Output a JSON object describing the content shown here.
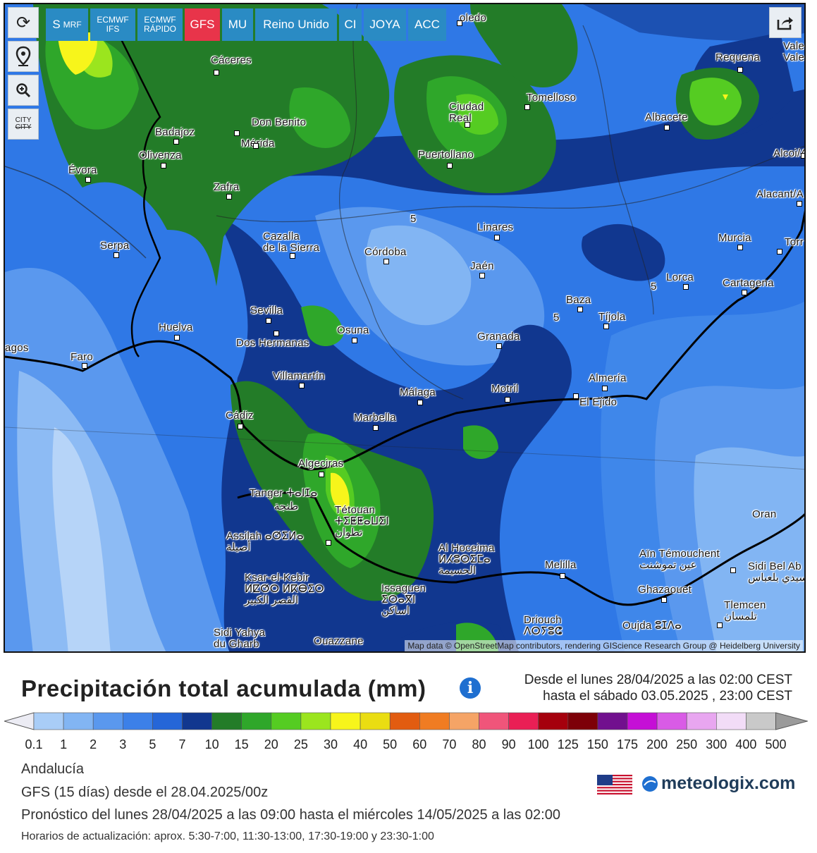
{
  "toolbar": {
    "models": [
      {
        "label": "S",
        "sub": "MRF",
        "active": false
      },
      {
        "label": "ECMWF",
        "sub": "IFS",
        "active": false
      },
      {
        "label": "ECMWF",
        "sub": "RÁPIDO",
        "active": false
      },
      {
        "label": "GFS",
        "sub": "",
        "active": true
      },
      {
        "label": "MU",
        "sub": "",
        "active": false
      },
      {
        "label": "Reino Unido",
        "sub": "",
        "active": false
      },
      {
        "label": "CI",
        "sub": "",
        "active": false
      },
      {
        "label": "JOYA",
        "sub": "",
        "active": false
      },
      {
        "label": "ACC",
        "sub": "",
        "active": false
      }
    ],
    "side": {
      "refresh_icon": "refresh-icon",
      "location_icon": "location-pin-icon",
      "zoom_icon": "zoom-icon",
      "city_label_top": "CITY",
      "city_label_bottom": "CITY"
    },
    "share_icon": "share-icon"
  },
  "map": {
    "cities": [
      {
        "name": "oledo"
      },
      {
        "name": "Cáceres"
      },
      {
        "name": "Badajoz"
      },
      {
        "name": "Don Benito"
      },
      {
        "name": "Mérida"
      },
      {
        "name": "Olivenza"
      },
      {
        "name": "Évora"
      },
      {
        "name": "Zafra"
      },
      {
        "name": "Ciudad\nReal"
      },
      {
        "name": "Tomelloso"
      },
      {
        "name": "Puertollano"
      },
      {
        "name": "Requena"
      },
      {
        "name": "Vale\nVale"
      },
      {
        "name": "Albacete"
      },
      {
        "name": "Alcoi/A"
      },
      {
        "name": "Alacant/A"
      },
      {
        "name": "Linares"
      },
      {
        "name": "Cazalla\nde la Sierra"
      },
      {
        "name": "Córdoba"
      },
      {
        "name": "Serpa"
      },
      {
        "name": "Murcia"
      },
      {
        "name": "Torr"
      },
      {
        "name": "Jaén"
      },
      {
        "name": "Lorca"
      },
      {
        "name": "Cartagena"
      },
      {
        "name": "Baza"
      },
      {
        "name": "Tíjola"
      },
      {
        "name": "Sevilla"
      },
      {
        "name": "Huelva"
      },
      {
        "name": "Osuna"
      },
      {
        "name": "Dos Hermanas"
      },
      {
        "name": "Granada"
      },
      {
        "name": "agos"
      },
      {
        "name": "Faro"
      },
      {
        "name": "Villamartín"
      },
      {
        "name": "Almería"
      },
      {
        "name": "Málaga"
      },
      {
        "name": "Motril"
      },
      {
        "name": "El Ejido"
      },
      {
        "name": "Cádiz"
      },
      {
        "name": "Marbella"
      },
      {
        "name": "Algeciras"
      },
      {
        "name": "Tanger ⵜⴰⵏⵊⴰ"
      },
      {
        "name": "طنجة"
      },
      {
        "name": "Tétouan\nⵜⵉⵟⵟⴰⵡⵉⵏ\nتطوان"
      },
      {
        "name": "Oran"
      },
      {
        "name": "Assilah ⴰⵚⵉⵍⴰ\nأصيلة"
      },
      {
        "name": "Al Hoceima\nⵍⵃⵓⵙⵉⵎⴰ\nالحسيمة"
      },
      {
        "name": "Melilla"
      },
      {
        "name": "Aïn Témouchent\nعين تموشنت"
      },
      {
        "name": "Sidi Bel Ab\nسيدي بلعباس"
      },
      {
        "name": "Ksar-el-Kebir\nⵍⵇⵚⵔ ⵍⴽⴱⵉⵔ\nالقصر الكبير"
      },
      {
        "name": "Issaguen\nⵉⵙⴰⴳⵏ\nاساكن"
      },
      {
        "name": "Ghazaouet"
      },
      {
        "name": "Tlemcen\nتلمسان"
      },
      {
        "name": "Driouch\nⴷⵔⵢⵓⵛ"
      },
      {
        "name": "Oujda ⵓⵊⴷⴰ"
      },
      {
        "name": "Sidi Yahya\ndu Gharb"
      },
      {
        "name": "Ouazzane"
      }
    ],
    "contour_labels": [
      "5",
      "5",
      "5"
    ],
    "attribution": "Map data © OpenStreetMap contributors, rendering GIScience Research Group @ Heidelberg University"
  },
  "legend": {
    "title": "Precipitación total acumulada (mm)",
    "info_icon": "info-icon",
    "range_line1": "Desde el lunes 28/04/2025 a  las 02:00  CEST",
    "range_line2": "hasta el sábado 03.05.2025 ,  23:00  CEST",
    "colors": [
      "#d8dcf0",
      "#a9cdf7",
      "#82b5f3",
      "#5a98ee",
      "#3c80e8",
      "#2566d8",
      "#11378f",
      "#237c28",
      "#2fa72a",
      "#55cc22",
      "#9be51e",
      "#f7f51b",
      "#eadd12",
      "#e25c10",
      "#f07c22",
      "#f5a466",
      "#f0557a",
      "#ea1f55",
      "#a5000d",
      "#7d0008",
      "#71108e",
      "#c50fd6",
      "#d95be6",
      "#e8a6f0",
      "#f2dcf7",
      "#c9c9c9",
      "#9b9b9b"
    ],
    "ticks": [
      "0.1",
      "1",
      "2",
      "3",
      "5",
      "7",
      "10",
      "15",
      "20",
      "25",
      "30",
      "40",
      "50",
      "60",
      "70",
      "80",
      "90",
      "100",
      "125",
      "150",
      "175",
      "200",
      "250",
      "300",
      "400",
      "500"
    ]
  },
  "meta": {
    "region": "Andalucía",
    "model_run": "GFS (15 días) desde el 28.04.2025/00z",
    "forecast": "Pronóstico del lunes 28/04/2025 a las 09:00 hasta el miércoles 14/05/2025 a las 02:00",
    "updates": "Horarios de actualización: aprox. 5:30-7:00, 11:30-13:00, 17:30-19:00 y 23:30-1:00",
    "brand": "meteologix.com",
    "flag_icon": "us-flag-icon"
  }
}
